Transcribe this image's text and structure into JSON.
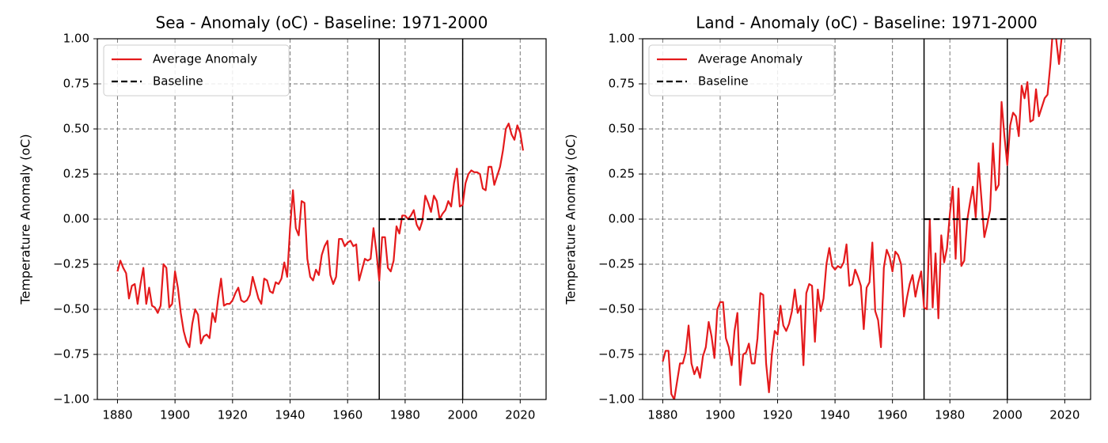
{
  "chart_data": [
    {
      "type": "line",
      "title": "Sea - Anomaly (oC) - Baseline: 1971-2000",
      "ylabel": "Temperature Anomaly (oC)",
      "x": [
        1880,
        1881,
        1882,
        1883,
        1884,
        1885,
        1886,
        1887,
        1888,
        1889,
        1890,
        1891,
        1892,
        1893,
        1894,
        1895,
        1896,
        1897,
        1898,
        1899,
        1900,
        1901,
        1902,
        1903,
        1904,
        1905,
        1906,
        1907,
        1908,
        1909,
        1910,
        1911,
        1912,
        1913,
        1914,
        1915,
        1916,
        1917,
        1918,
        1919,
        1920,
        1921,
        1922,
        1923,
        1924,
        1925,
        1926,
        1927,
        1928,
        1929,
        1930,
        1931,
        1932,
        1933,
        1934,
        1935,
        1936,
        1937,
        1938,
        1939,
        1940,
        1941,
        1942,
        1943,
        1944,
        1945,
        1946,
        1947,
        1948,
        1949,
        1950,
        1951,
        1952,
        1953,
        1954,
        1955,
        1956,
        1957,
        1958,
        1959,
        1960,
        1961,
        1962,
        1963,
        1964,
        1965,
        1966,
        1967,
        1968,
        1969,
        1970,
        1971,
        1972,
        1973,
        1974,
        1975,
        1976,
        1977,
        1978,
        1979,
        1980,
        1981,
        1982,
        1983,
        1984,
        1985,
        1986,
        1987,
        1988,
        1989,
        1990,
        1991,
        1992,
        1993,
        1994,
        1995,
        1996,
        1997,
        1998,
        1999,
        2000,
        2001,
        2002,
        2003,
        2004,
        2005,
        2006,
        2007,
        2008,
        2009,
        2010,
        2011,
        2012,
        2013,
        2014,
        2015,
        2016,
        2017,
        2018,
        2019,
        2020,
        2021
      ],
      "series": [
        {
          "name": "Average Anomaly",
          "color": "#e41a1c",
          "values": [
            -0.29,
            -0.23,
            -0.27,
            -0.3,
            -0.44,
            -0.37,
            -0.36,
            -0.47,
            -0.36,
            -0.27,
            -0.47,
            -0.38,
            -0.48,
            -0.49,
            -0.52,
            -0.48,
            -0.25,
            -0.27,
            -0.49,
            -0.47,
            -0.29,
            -0.38,
            -0.52,
            -0.62,
            -0.68,
            -0.71,
            -0.58,
            -0.5,
            -0.53,
            -0.69,
            -0.65,
            -0.64,
            -0.66,
            -0.52,
            -0.57,
            -0.44,
            -0.33,
            -0.48,
            -0.47,
            -0.47,
            -0.45,
            -0.41,
            -0.38,
            -0.45,
            -0.46,
            -0.45,
            -0.42,
            -0.32,
            -0.38,
            -0.44,
            -0.47,
            -0.33,
            -0.34,
            -0.4,
            -0.41,
            -0.35,
            -0.36,
            -0.33,
            -0.24,
            -0.32,
            -0.05,
            0.16,
            -0.05,
            -0.09,
            0.1,
            0.09,
            -0.22,
            -0.32,
            -0.34,
            -0.28,
            -0.31,
            -0.2,
            -0.15,
            -0.12,
            -0.31,
            -0.36,
            -0.32,
            -0.11,
            -0.11,
            -0.15,
            -0.13,
            -0.12,
            -0.15,
            -0.14,
            -0.34,
            -0.28,
            -0.22,
            -0.23,
            -0.22,
            -0.05,
            -0.18,
            -0.34,
            -0.1,
            -0.1,
            -0.27,
            -0.29,
            -0.23,
            -0.04,
            -0.08,
            0.02,
            0.02,
            0.0,
            0.02,
            0.05,
            -0.03,
            -0.06,
            -0.01,
            0.13,
            0.09,
            0.04,
            0.13,
            0.1,
            0.0,
            0.03,
            0.05,
            0.1,
            0.07,
            0.2,
            0.28,
            0.07,
            0.08,
            0.2,
            0.25,
            0.27,
            0.26,
            0.26,
            0.25,
            0.17,
            0.16,
            0.29,
            0.29,
            0.19,
            0.24,
            0.29,
            0.38,
            0.5,
            0.53,
            0.47,
            0.44,
            0.52,
            0.48,
            0.38
          ]
        },
        {
          "name": "Baseline",
          "color": "#000000",
          "dashed": true,
          "x": [
            1971,
            2000
          ],
          "values": [
            0,
            0
          ]
        }
      ],
      "vlines": [
        1971,
        2000
      ],
      "xlim": [
        1873,
        2029
      ],
      "ylim": [
        -1,
        1
      ],
      "xticks": [
        1880,
        1900,
        1920,
        1940,
        1960,
        1980,
        2000,
        2020
      ],
      "yticks": [
        {
          "value": -1,
          "label": "−1.00"
        },
        {
          "value": -0.75,
          "label": "−0.75"
        },
        {
          "value": -0.5,
          "label": "−0.50"
        },
        {
          "value": -0.25,
          "label": "−0.25"
        },
        {
          "value": 0,
          "label": "0.00"
        },
        {
          "value": 0.25,
          "label": "0.25"
        },
        {
          "value": 0.5,
          "label": "0.50"
        },
        {
          "value": 0.75,
          "label": "0.75"
        },
        {
          "value": 1,
          "label": "1.00"
        }
      ],
      "grid": true,
      "legend": "upper left"
    },
    {
      "type": "line",
      "title": "Land - Anomaly (oC) - Baseline: 1971-2000",
      "ylabel": "Temperature Anomaly (oC)",
      "x": [
        1880,
        1881,
        1882,
        1883,
        1884,
        1885,
        1886,
        1887,
        1888,
        1889,
        1890,
        1891,
        1892,
        1893,
        1894,
        1895,
        1896,
        1897,
        1898,
        1899,
        1900,
        1901,
        1902,
        1903,
        1904,
        1905,
        1906,
        1907,
        1908,
        1909,
        1910,
        1911,
        1912,
        1913,
        1914,
        1915,
        1916,
        1917,
        1918,
        1919,
        1920,
        1921,
        1922,
        1923,
        1924,
        1925,
        1926,
        1927,
        1928,
        1929,
        1930,
        1931,
        1932,
        1933,
        1934,
        1935,
        1936,
        1937,
        1938,
        1939,
        1940,
        1941,
        1942,
        1943,
        1944,
        1945,
        1946,
        1947,
        1948,
        1949,
        1950,
        1951,
        1952,
        1953,
        1954,
        1955,
        1956,
        1957,
        1958,
        1959,
        1960,
        1961,
        1962,
        1963,
        1964,
        1965,
        1966,
        1967,
        1968,
        1969,
        1970,
        1971,
        1972,
        1973,
        1974,
        1975,
        1976,
        1977,
        1978,
        1979,
        1980,
        1981,
        1982,
        1983,
        1984,
        1985,
        1986,
        1987,
        1988,
        1989,
        1990,
        1991,
        1992,
        1993,
        1994,
        1995,
        1996,
        1997,
        1998,
        1999,
        2000,
        2001,
        2002,
        2003,
        2004,
        2005,
        2006,
        2007,
        2008,
        2009,
        2010,
        2011,
        2012,
        2013,
        2014,
        2015,
        2016,
        2017,
        2018,
        2019
      ],
      "series": [
        {
          "name": "Average Anomaly",
          "color": "#e41a1c",
          "values": [
            -0.79,
            -0.73,
            -0.73,
            -0.97,
            -1.0,
            -0.9,
            -0.8,
            -0.8,
            -0.74,
            -0.59,
            -0.8,
            -0.86,
            -0.82,
            -0.88,
            -0.76,
            -0.71,
            -0.57,
            -0.65,
            -0.77,
            -0.5,
            -0.46,
            -0.46,
            -0.66,
            -0.71,
            -0.81,
            -0.62,
            -0.52,
            -0.92,
            -0.75,
            -0.74,
            -0.69,
            -0.8,
            -0.8,
            -0.66,
            -0.41,
            -0.42,
            -0.8,
            -0.96,
            -0.75,
            -0.62,
            -0.64,
            -0.48,
            -0.59,
            -0.62,
            -0.58,
            -0.51,
            -0.39,
            -0.52,
            -0.48,
            -0.81,
            -0.41,
            -0.36,
            -0.37,
            -0.68,
            -0.39,
            -0.51,
            -0.44,
            -0.25,
            -0.16,
            -0.26,
            -0.28,
            -0.26,
            -0.27,
            -0.24,
            -0.14,
            -0.37,
            -0.36,
            -0.28,
            -0.32,
            -0.37,
            -0.61,
            -0.38,
            -0.35,
            -0.13,
            -0.51,
            -0.56,
            -0.71,
            -0.27,
            -0.17,
            -0.21,
            -0.29,
            -0.18,
            -0.2,
            -0.25,
            -0.54,
            -0.44,
            -0.36,
            -0.31,
            -0.43,
            -0.35,
            -0.29,
            -0.49,
            -0.5,
            0.0,
            -0.49,
            -0.19,
            -0.55,
            -0.09,
            -0.24,
            -0.16,
            0.03,
            0.18,
            -0.22,
            0.17,
            -0.26,
            -0.23,
            -0.01,
            0.09,
            0.18,
            0.01,
            0.31,
            0.11,
            -0.1,
            -0.03,
            0.05,
            0.42,
            0.16,
            0.19,
            0.65,
            0.46,
            0.3,
            0.52,
            0.59,
            0.57,
            0.46,
            0.74,
            0.67,
            0.76,
            0.54,
            0.55,
            0.72,
            0.57,
            0.62,
            0.67,
            0.69,
            0.86,
            1.08,
            1.0,
            0.86,
            1.02
          ]
        },
        {
          "name": "Baseline",
          "color": "#000000",
          "dashed": true,
          "x": [
            1971,
            2000
          ],
          "values": [
            0,
            0
          ]
        }
      ],
      "vlines": [
        1971,
        2000
      ],
      "xlim": [
        1873,
        2029
      ],
      "ylim": [
        -1,
        1
      ],
      "xticks": [
        1880,
        1900,
        1920,
        1940,
        1960,
        1980,
        2000,
        2020
      ],
      "yticks": [
        {
          "value": -1,
          "label": "−1.00"
        },
        {
          "value": -0.75,
          "label": "−0.75"
        },
        {
          "value": -0.5,
          "label": "−0.50"
        },
        {
          "value": -0.25,
          "label": "−0.25"
        },
        {
          "value": 0,
          "label": "0.00"
        },
        {
          "value": 0.25,
          "label": "0.25"
        },
        {
          "value": 0.5,
          "label": "0.50"
        },
        {
          "value": 0.75,
          "label": "0.75"
        },
        {
          "value": 1,
          "label": "1.00"
        }
      ],
      "grid": true,
      "legend": "upper left"
    }
  ]
}
